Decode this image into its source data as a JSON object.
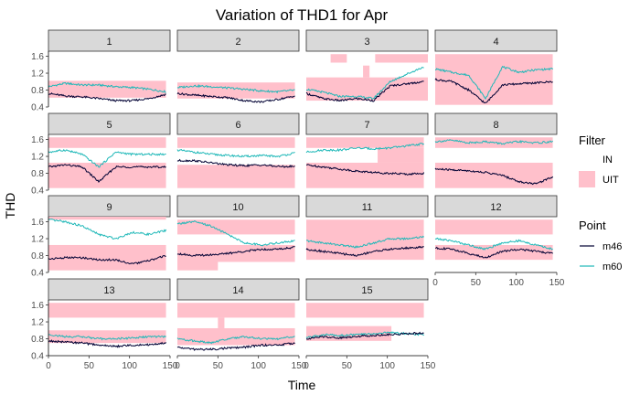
{
  "chart_data": {
    "type": "line",
    "title": "Variation of THD1 for Apr",
    "xlabel": "Time",
    "ylabel": "THD",
    "xlim": [
      0,
      150
    ],
    "ylim": [
      0.4,
      1.72
    ],
    "x_ticks": [
      "0",
      "50",
      "100",
      "150"
    ],
    "y_ticks": [
      "0.4",
      "0.8",
      "1.2",
      "1.6"
    ],
    "grid": false,
    "facets": [
      "1",
      "2",
      "3",
      "4",
      "5",
      "6",
      "7",
      "8",
      "9",
      "10",
      "11",
      "12",
      "13",
      "14",
      "15"
    ],
    "legends": [
      {
        "title": "Filter",
        "entries": [
          {
            "label": "IN",
            "color": "#ffffff"
          },
          {
            "label": "UIT",
            "color": "#ffc0cb"
          }
        ]
      },
      {
        "title": "Point",
        "entries": [
          {
            "label": "m46",
            "color": "#000033"
          },
          {
            "label": "m60",
            "color": "#1fb8b8"
          }
        ]
      }
    ],
    "legend_position": "right",
    "colors": {
      "m46": "#000033",
      "m60": "#1fb8b8",
      "UIT": "#ffc0cb",
      "strip": "#d9d9d9"
    },
    "series": [
      {
        "facet": "1",
        "m46": [
          0.72,
          0.66,
          0.64,
          0.6,
          0.55,
          0.55,
          0.6,
          0.7
        ],
        "m60": [
          0.88,
          0.96,
          0.92,
          0.92,
          0.88,
          0.86,
          0.82,
          0.76
        ],
        "uit": [
          [
            0,
            145,
            0.62,
            1.02
          ]
        ]
      },
      {
        "facet": "2",
        "m46": [
          0.72,
          0.68,
          0.65,
          0.62,
          0.55,
          0.52,
          0.58,
          0.66
        ],
        "m60": [
          0.86,
          0.9,
          0.88,
          0.85,
          0.82,
          0.78,
          0.76,
          0.8
        ],
        "uit": [
          [
            0,
            145,
            0.6,
            0.98
          ]
        ]
      },
      {
        "facet": "3",
        "m46": [
          0.72,
          0.6,
          0.55,
          0.6,
          0.55,
          0.9,
          0.95,
          1.0
        ],
        "m60": [
          0.82,
          0.75,
          0.65,
          0.65,
          0.6,
          1.0,
          1.18,
          1.35
        ],
        "uit": [
          [
            0,
            150,
            0.55,
            1.1
          ],
          [
            30,
            50,
            1.45,
            1.65
          ],
          [
            85,
            150,
            1.45,
            1.65
          ],
          [
            70,
            78,
            1.1,
            1.38
          ]
        ]
      },
      {
        "facet": "4",
        "m46": [
          1.05,
          1.0,
          0.8,
          0.48,
          0.92,
          0.95,
          0.97,
          1.0
        ],
        "m60": [
          1.3,
          1.22,
          1.15,
          0.6,
          1.35,
          1.22,
          1.28,
          1.3
        ],
        "uit": [
          [
            0,
            145,
            0.45,
            1.65
          ]
        ]
      },
      {
        "facet": "5",
        "m46": [
          0.95,
          1.0,
          0.95,
          0.6,
          0.95,
          0.95,
          0.95,
          0.95
        ],
        "m60": [
          1.3,
          1.35,
          1.25,
          0.95,
          1.3,
          1.25,
          1.25,
          1.25
        ],
        "uit": [
          [
            0,
            145,
            0.45,
            1.05
          ],
          [
            0,
            145,
            1.4,
            1.65
          ]
        ]
      },
      {
        "facet": "6",
        "m46": [
          1.1,
          1.1,
          1.05,
          1.0,
          0.98,
          1.0,
          0.96,
          0.96
        ],
        "m60": [
          1.35,
          1.3,
          1.25,
          1.22,
          1.2,
          1.22,
          1.2,
          1.28
        ],
        "uit": [
          [
            0,
            145,
            0.45,
            1.0
          ],
          [
            0,
            145,
            1.4,
            1.65
          ]
        ]
      },
      {
        "facet": "7",
        "m46": [
          1.0,
          0.95,
          0.9,
          0.85,
          0.82,
          0.8,
          0.78,
          0.8
        ],
        "m60": [
          1.3,
          1.35,
          1.35,
          1.4,
          1.38,
          1.4,
          1.45,
          1.5
        ],
        "uit": [
          [
            0,
            145,
            0.45,
            1.05
          ],
          [
            0,
            145,
            1.4,
            1.65
          ],
          [
            88,
            145,
            1.05,
            1.4
          ]
        ]
      },
      {
        "facet": "8",
        "m46": [
          0.9,
          0.88,
          0.86,
          0.82,
          0.75,
          0.6,
          0.55,
          0.72
        ],
        "m60": [
          1.55,
          1.58,
          1.52,
          1.55,
          1.5,
          1.55,
          1.52,
          1.55
        ],
        "uit": [
          [
            0,
            145,
            0.45,
            1.05
          ],
          [
            0,
            145,
            1.4,
            1.65
          ]
        ]
      },
      {
        "facet": "9",
        "m46": [
          0.72,
          0.75,
          0.75,
          0.7,
          0.7,
          0.6,
          0.68,
          0.8
        ],
        "m60": [
          1.65,
          1.6,
          1.5,
          1.3,
          1.2,
          1.35,
          1.3,
          1.4
        ],
        "uit": [
          [
            0,
            145,
            0.45,
            1.05
          ],
          [
            0,
            145,
            1.65,
            1.72
          ]
        ]
      },
      {
        "facet": "10",
        "m46": [
          0.85,
          0.8,
          0.82,
          0.85,
          0.9,
          0.95,
          0.95,
          1.0
        ],
        "m60": [
          1.55,
          1.6,
          1.5,
          1.3,
          1.1,
          1.05,
          1.1,
          1.15
        ],
        "uit": [
          [
            0,
            145,
            0.65,
            1.05
          ],
          [
            0,
            145,
            1.3,
            1.65
          ],
          [
            0,
            50,
            0.45,
            1.05
          ]
        ]
      },
      {
        "facet": "11",
        "m46": [
          0.95,
          0.9,
          0.85,
          0.8,
          0.9,
          0.95,
          0.98,
          1.0
        ],
        "m60": [
          1.15,
          1.1,
          1.05,
          1.0,
          1.1,
          1.2,
          1.2,
          1.25
        ],
        "uit": [
          [
            0,
            145,
            0.7,
            1.65
          ]
        ]
      },
      {
        "facet": "12",
        "m46": [
          0.98,
          0.95,
          0.85,
          0.75,
          0.9,
          0.95,
          0.9,
          0.85
        ],
        "m60": [
          1.2,
          1.15,
          1.05,
          0.95,
          1.1,
          1.15,
          1.05,
          0.95
        ],
        "uit": [
          [
            0,
            145,
            0.7,
            1.05
          ],
          [
            0,
            145,
            1.3,
            1.65
          ]
        ]
      },
      {
        "facet": "13",
        "m46": [
          0.75,
          0.72,
          0.7,
          0.65,
          0.62,
          0.65,
          0.66,
          0.7
        ],
        "m60": [
          0.9,
          0.85,
          0.85,
          0.8,
          0.8,
          0.82,
          0.85,
          0.85
        ],
        "uit": [
          [
            0,
            145,
            0.7,
            1.0
          ],
          [
            0,
            145,
            1.3,
            1.65
          ]
        ]
      },
      {
        "facet": "14",
        "m46": [
          0.6,
          0.55,
          0.55,
          0.58,
          0.6,
          0.65,
          0.65,
          0.7
        ],
        "m60": [
          0.8,
          0.75,
          0.7,
          0.8,
          0.85,
          0.8,
          0.8,
          0.85
        ],
        "uit": [
          [
            0,
            145,
            0.65,
            1.05
          ],
          [
            0,
            145,
            1.3,
            1.65
          ],
          [
            50,
            58,
            1.05,
            1.3
          ]
        ]
      },
      {
        "facet": "15",
        "m46": [
          0.8,
          0.85,
          0.82,
          0.86,
          0.88,
          0.9,
          0.92,
          0.94
        ],
        "m60": [
          0.82,
          0.9,
          0.88,
          0.9,
          0.92,
          0.95,
          0.92,
          0.9
        ],
        "uit": [
          [
            0,
            105,
            0.75,
            1.1
          ],
          [
            0,
            145,
            1.3,
            1.65
          ]
        ]
      }
    ]
  }
}
